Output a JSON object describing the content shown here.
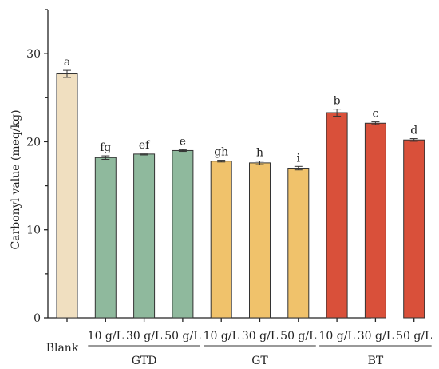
{
  "chart_data": {
    "type": "bar",
    "title": "",
    "xlabel": "",
    "ylabel": "Carbonyl value (meq/kg)",
    "ylim": [
      0,
      35
    ],
    "yticks": [
      0,
      10,
      20,
      30
    ],
    "grid": false,
    "categories": [
      "Blank",
      "10 g/L",
      "30 g/L",
      "50 g/L",
      "10 g/L",
      "30 g/L",
      "50 g/L",
      "10 g/L",
      "30 g/L",
      "50 g/L"
    ],
    "values": [
      27.7,
      18.2,
      18.6,
      19.0,
      17.8,
      17.6,
      17.0,
      23.3,
      22.1,
      20.2
    ],
    "errors": [
      0.4,
      0.2,
      0.1,
      0.1,
      0.1,
      0.2,
      0.2,
      0.4,
      0.15,
      0.15
    ],
    "letters": [
      "a",
      "fg",
      "ef",
      "e",
      "gh",
      "h",
      "i",
      "b",
      "c",
      "d"
    ],
    "bar_colors": [
      "#f0dfc0",
      "#8fb99d",
      "#8fb99d",
      "#8fb99d",
      "#f0c26b",
      "#f0c26b",
      "#f0c26b",
      "#d9503a",
      "#d9503a",
      "#d9503a"
    ],
    "groups": [
      {
        "label": "GTD",
        "start": 1,
        "end": 3
      },
      {
        "label": "GT",
        "start": 4,
        "end": 6
      },
      {
        "label": "BT",
        "start": 7,
        "end": 9
      }
    ]
  }
}
